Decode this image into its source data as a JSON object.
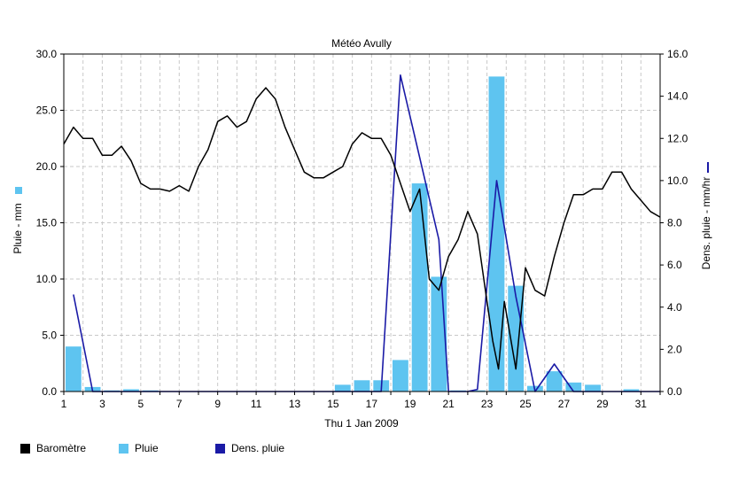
{
  "chart_data": {
    "type": "bar",
    "title": "Météo Avully",
    "xlabel": "Thu 1 Jan 2009",
    "ylabel_left": "Pluie - mm",
    "ylabel_right": "Dens. pluie - mm/hr",
    "x_range": [
      1,
      32
    ],
    "x_ticks": [
      "1",
      "3",
      "5",
      "7",
      "9",
      "11",
      "13",
      "15",
      "17",
      "19",
      "21",
      "23",
      "25",
      "27",
      "29",
      "31"
    ],
    "y_left_range": [
      0,
      30
    ],
    "y_left_ticks": [
      "0.0",
      "5.0",
      "10.0",
      "15.0",
      "20.0",
      "25.0",
      "30.0"
    ],
    "y_right_range": [
      0,
      16
    ],
    "y_right_ticks": [
      "0.0",
      "2.0",
      "4.0",
      "6.0",
      "8.0",
      "10.0",
      "12.0",
      "14.0",
      "16.0"
    ],
    "grid": true,
    "legend_position": "bottom-left",
    "colors": {
      "pluie": "#5ec4f0",
      "barometre": "#000000",
      "dens_pluie": "#1a1aa6",
      "grid": "#c8c8c8"
    },
    "series": [
      {
        "name": "Pluie",
        "type": "bar",
        "axis": "left",
        "x": [
          1.5,
          2.5,
          3.5,
          4.5,
          5.5,
          15.5,
          16.5,
          17.5,
          18.5,
          19.5,
          20.5,
          21.5,
          22.5,
          23.5,
          24.5,
          25.5,
          26.5,
          27.5,
          28.5,
          30.5
        ],
        "values": [
          4.0,
          0.4,
          0.1,
          0.2,
          0.1,
          0.6,
          1.0,
          1.0,
          2.8,
          18.5,
          10.2,
          0.1,
          0.1,
          28.0,
          9.4,
          0.5,
          1.8,
          0.8,
          0.6,
          0.2
        ]
      },
      {
        "name": "Dens. pluie",
        "type": "line",
        "axis": "right",
        "x": [
          1.5,
          2.5,
          17.5,
          18.5,
          20.5,
          21.0,
          22.0,
          22.5,
          23.5,
          24.5,
          25.5,
          26.5,
          27.5,
          32.0
        ],
        "values": [
          4.6,
          0.0,
          0.0,
          15.0,
          7.2,
          0.0,
          0.0,
          0.1,
          10.0,
          4.5,
          0.0,
          1.3,
          0.0,
          0.0
        ]
      },
      {
        "name": "Baromètre",
        "type": "line",
        "axis": "left",
        "x": [
          1,
          1.5,
          2,
          2.5,
          3,
          3.5,
          4,
          4.5,
          5,
          5.5,
          6,
          6.5,
          7,
          7.5,
          8,
          8.5,
          9,
          9.5,
          10,
          10.5,
          11,
          11.5,
          12,
          12.5,
          13,
          13.5,
          14,
          14.5,
          15,
          15.5,
          16,
          16.5,
          17,
          17.5,
          18,
          18.5,
          19,
          19.5,
          20,
          20.5,
          21,
          21.5,
          22,
          22.5,
          23,
          23.3,
          23.6,
          23.9,
          24.2,
          24.5,
          25,
          25.5,
          26,
          26.5,
          27,
          27.5,
          28,
          28.5,
          29,
          29.5,
          30,
          30.5,
          31,
          31.5,
          32
        ],
        "values": [
          22.0,
          23.5,
          22.5,
          22.5,
          21.0,
          21.0,
          21.8,
          20.5,
          18.5,
          18.0,
          18.0,
          17.8,
          18.3,
          17.8,
          20.0,
          21.5,
          24.0,
          24.5,
          23.5,
          24.0,
          26.0,
          27.0,
          26.0,
          23.5,
          21.5,
          19.5,
          19.0,
          19.0,
          19.5,
          20.0,
          22.0,
          23.0,
          22.5,
          22.5,
          21.0,
          18.5,
          16.0,
          18.0,
          10.0,
          9.0,
          12.0,
          13.5,
          16.0,
          14.0,
          8.0,
          4.5,
          2.0,
          8.0,
          5.0,
          2.0,
          11.0,
          9.0,
          8.5,
          12.0,
          15.0,
          17.5,
          17.5,
          18.0,
          18.0,
          19.5,
          19.5,
          18.0,
          17.0,
          16.0,
          15.5
        ]
      }
    ],
    "legend": [
      {
        "label": "Baromètre",
        "color": "#000000"
      },
      {
        "label": "Pluie",
        "color": "#5ec4f0"
      },
      {
        "label": "Dens. pluie",
        "color": "#1a1aa6"
      }
    ]
  }
}
